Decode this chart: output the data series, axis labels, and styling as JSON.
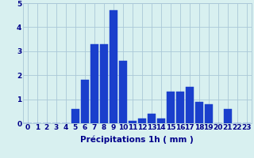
{
  "hours": [
    0,
    1,
    2,
    3,
    4,
    5,
    6,
    7,
    8,
    9,
    10,
    11,
    12,
    13,
    14,
    15,
    16,
    17,
    18,
    19,
    20,
    21,
    22,
    23
  ],
  "values": [
    0,
    0,
    0,
    0,
    0,
    0.6,
    1.8,
    3.3,
    3.3,
    4.7,
    2.6,
    0.1,
    0.2,
    0.4,
    0.2,
    1.3,
    1.3,
    1.5,
    0.9,
    0.8,
    0,
    0.6,
    0,
    0
  ],
  "bar_color": "#1a3fcc",
  "edge_color": "#1a3fcc",
  "background_color": "#d8f0f0",
  "grid_color": "#aac8d8",
  "xlabel": "Précipitations 1h ( mm )",
  "xlabel_color": "#00008b",
  "tick_color": "#00008b",
  "ylim": [
    0,
    5
  ],
  "yticks": [
    0,
    1,
    2,
    3,
    4,
    5
  ],
  "xlabel_fontsize": 7.5,
  "tick_fontsize": 6.5
}
